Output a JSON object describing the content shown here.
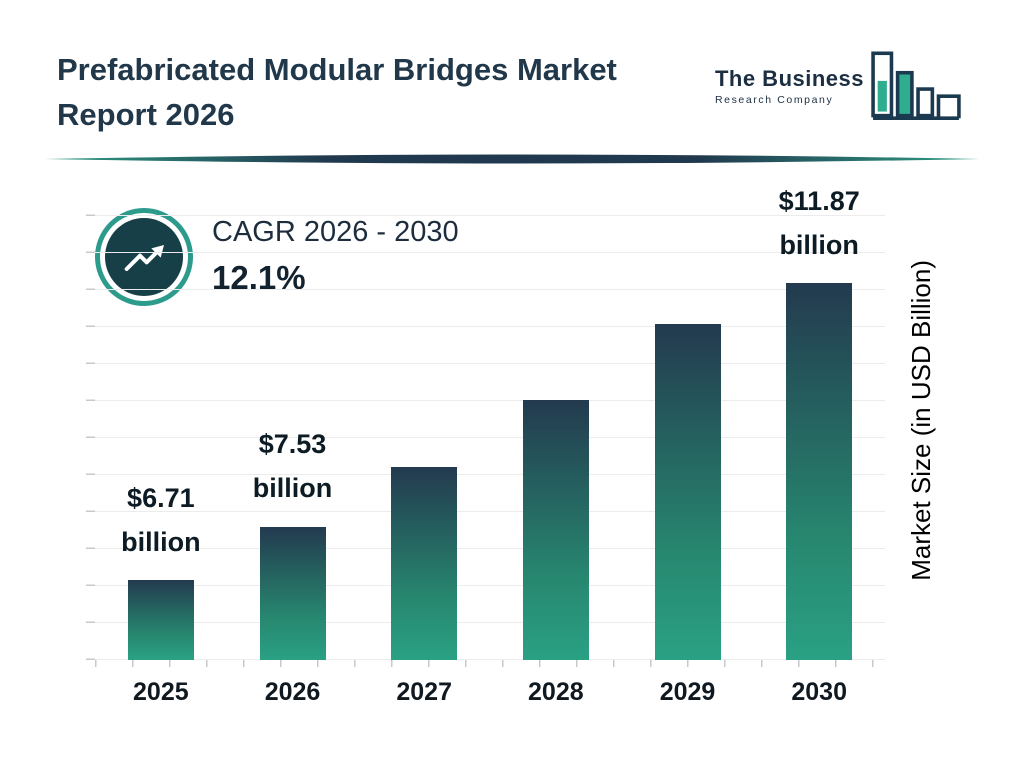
{
  "header": {
    "title": "Prefabricated Modular Bridges Market Report 2026",
    "logo": {
      "line1": "The Business",
      "line2": "Research Company",
      "icon": "bar-chart-logo-icon"
    }
  },
  "cagr": {
    "label": "CAGR 2026 - 2030",
    "value": "12.1%",
    "icon": "trending-up-arrow-icon"
  },
  "chart_data": {
    "type": "bar",
    "title": "Prefabricated Modular Bridges Market Report 2026",
    "categories": [
      "2025",
      "2026",
      "2027",
      "2028",
      "2029",
      "2030"
    ],
    "values": [
      6.71,
      7.53,
      8.44,
      9.46,
      10.61,
      11.87
    ],
    "value_labels": [
      [
        "$6.71",
        "billion"
      ],
      [
        "$7.53",
        "billion"
      ],
      null,
      null,
      null,
      [
        "$11.87",
        "billion"
      ]
    ],
    "xlabel": "",
    "ylabel": "Market Size (in USD Billion)",
    "ylim": [
      5.5,
      12.8
    ],
    "grid": "horizontal",
    "legend": "none",
    "units": "USD Billion"
  },
  "colors": {
    "navy": "#21374a",
    "teal": "#2aa184",
    "bar_top": "#233a4f",
    "bar_bottom": "#2aa184",
    "ring_teal": "#2d9b8b",
    "circle_dark": "#173f47",
    "label_dark": "#0d1b24"
  }
}
